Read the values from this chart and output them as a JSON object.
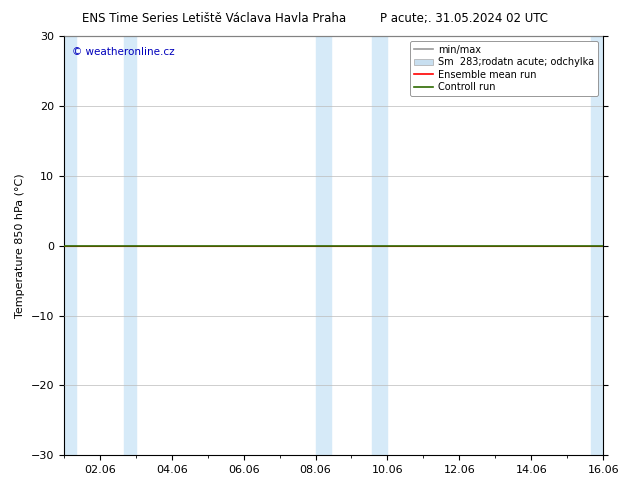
{
  "title_left": "ENS Time Series Letiště Václava Havla Praha",
  "title_right": "P acute;. 31.05.2024 02 UTC",
  "ylabel": "Temperature 850 hPa (°C)",
  "ylim": [
    -30,
    30
  ],
  "yticks": [
    -30,
    -20,
    -10,
    0,
    10,
    20,
    30
  ],
  "xlim_start": 0,
  "xlim_end": 15,
  "xtick_positions": [
    1,
    3,
    5,
    7,
    9,
    11,
    13,
    15
  ],
  "xtick_labels": [
    "02.06",
    "04.06",
    "06.06",
    "08.06",
    "10.06",
    "12.06",
    "14.06",
    "16.06"
  ],
  "shade_bands": [
    [
      0.0,
      0.33
    ],
    [
      1.67,
      2.0
    ],
    [
      7.0,
      7.42
    ],
    [
      8.58,
      9.0
    ],
    [
      14.67,
      15.0
    ]
  ],
  "shade_color": "#d6eaf8",
  "background_color": "#ffffff",
  "control_run_color": "#2d6a00",
  "ensemble_mean_color": "#ff0000",
  "minmax_color": "#999999",
  "spread_color": "#c8dff0",
  "watermark": "© weatheronline.cz",
  "watermark_color": "#0000bb",
  "legend_minmax": "min/max",
  "legend_spread": "Sm  283;rodatn acute; odchylka",
  "legend_ensemble": "Ensemble mean run",
  "legend_control": "Controll run",
  "figsize": [
    6.34,
    4.9
  ],
  "dpi": 100
}
